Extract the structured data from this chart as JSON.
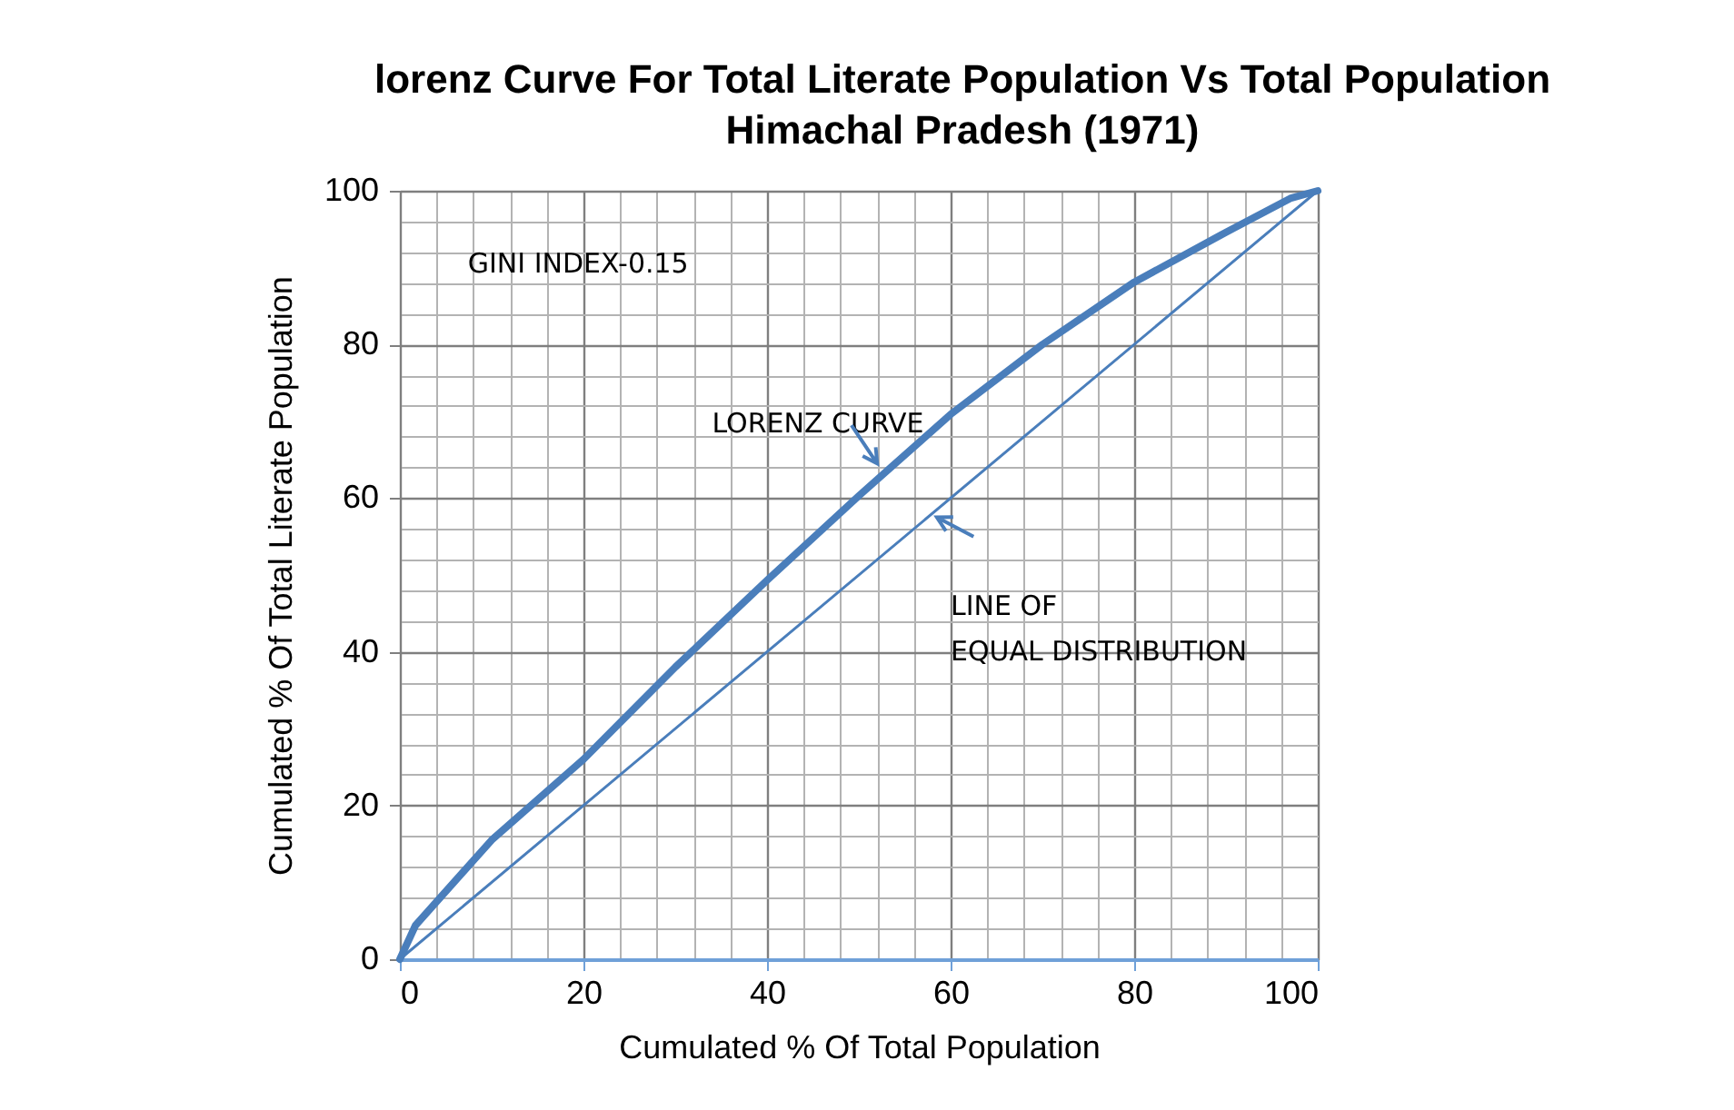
{
  "chart_data": {
    "type": "line",
    "title": "lorenz Curve For Total Literate Population Vs Total Population",
    "subtitle": "Himachal Pradesh (1971)",
    "xlabel": "Cumulated % Of Total Population",
    "ylabel": "Cumulated % Of Total Literate Population",
    "series": [
      {
        "color": "#4a7ebb",
        "x": [
          0,
          1.7,
          10,
          20,
          30,
          40,
          50,
          60,
          70,
          80,
          90,
          97,
          100
        ],
        "values": [
          0,
          4.4,
          15.5,
          26,
          38,
          49.3,
          60.3,
          70.9,
          80,
          88.1,
          94.6,
          99,
          100
        ]
      },
      {
        "color": "#4a7ebb",
        "x": [
          0,
          100
        ],
        "values": [
          0,
          100
        ]
      }
    ],
    "xlim": [
      0,
      100
    ],
    "ylim": [
      0,
      100
    ],
    "xticks": [
      0,
      20,
      40,
      60,
      80,
      100
    ],
    "yticks": [
      0,
      20,
      40,
      60,
      80,
      100
    ],
    "grid": true,
    "marker": "none",
    "line_style": "solid",
    "annotations": [
      "GINI INDEX-0.15",
      "LORENZ CURVE",
      "LINE OF\nEQUAL DISTRIBUTION"
    ]
  }
}
